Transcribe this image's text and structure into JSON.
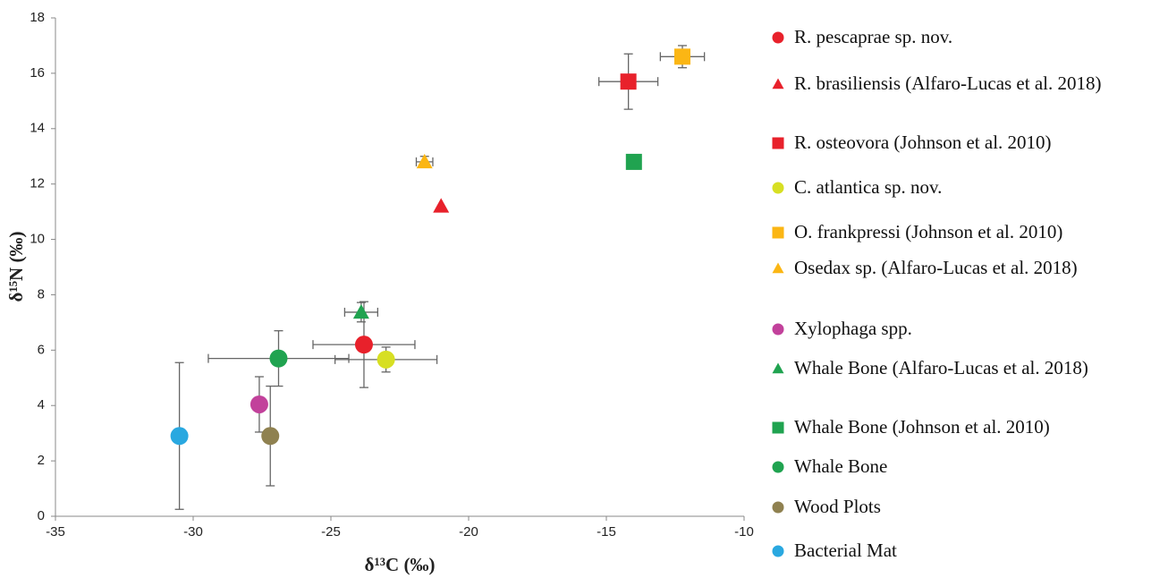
{
  "chart_data": {
    "type": "scatter",
    "x_label": "δ¹³C (‰)",
    "y_label": "δ¹⁵N (‰)",
    "xlim": [
      -35,
      -10
    ],
    "xticks": [
      -35,
      -30,
      -25,
      -20,
      -15,
      -10
    ],
    "ylim": [
      0,
      18
    ],
    "yticks": [
      0,
      2,
      4,
      6,
      8,
      10,
      12,
      14,
      16,
      18
    ],
    "grid": false,
    "legend": "right",
    "series": [
      {
        "name": "R. pescaprae sp. nov.",
        "color": "#e8212b",
        "marker": "circle",
        "x": [
          -23.8
        ],
        "values": [
          6.2
        ],
        "x_errors": [
          1.85
        ],
        "y_errors": [
          1.55
        ]
      },
      {
        "name": "R. brasiliensis (Alfaro-Lucas et al. 2018)",
        "color": "#e8212b",
        "marker": "triangle",
        "x": [
          -21.0
        ],
        "values": [
          11.2
        ]
      },
      {
        "name": "R. osteovora (Johnson et al. 2010)",
        "color": "#e8212b",
        "marker": "square",
        "x": [
          -14.2
        ],
        "values": [
          15.7
        ],
        "x_errors": [
          1.07
        ],
        "y_errors": [
          1.0
        ]
      },
      {
        "name": "C. atlantica sp. nov.",
        "color": "#d7df23",
        "marker": "circle",
        "x": [
          -23.0
        ],
        "values": [
          5.66
        ],
        "x_errors": [
          1.85
        ],
        "y_errors": [
          0.45
        ]
      },
      {
        "name": "O. frankpressi (Johnson et al. 2010)",
        "color": "#fbb614",
        "marker": "square",
        "x": [
          -12.24
        ],
        "values": [
          16.6
        ],
        "x_errors": [
          0.8
        ],
        "y_errors": [
          0.4
        ]
      },
      {
        "name": "Osedax sp. (Alfaro-Lucas et al. 2018)",
        "color": "#fbb614",
        "marker": "triangle",
        "x": [
          -21.6
        ],
        "values": [
          12.8
        ],
        "x_errors": [
          0.3
        ],
        "y_errors": [
          0.2
        ]
      },
      {
        "name": "Xylophaga spp.",
        "color": "#c2419b",
        "marker": "circle",
        "x": [
          -27.6
        ],
        "values": [
          4.04
        ],
        "y_errors": [
          1.0
        ]
      },
      {
        "name": "Whale Bone (Alfaro-Lucas et al. 2018)",
        "color": "#20a350",
        "marker": "triangle",
        "x": [
          -23.9
        ],
        "values": [
          7.37
        ],
        "x_errors": [
          0.6
        ],
        "y_errors": [
          0.35
        ]
      },
      {
        "name": "Whale Bone (Johnson et al. 2010)",
        "color": "#20a350",
        "marker": "square",
        "x": [
          -14.0
        ],
        "values": [
          12.8
        ]
      },
      {
        "name": "Whale Bone",
        "color": "#20a350",
        "marker": "circle",
        "x": [
          -26.9
        ],
        "values": [
          5.7
        ],
        "x_errors": [
          2.55
        ],
        "y_errors": [
          1.0
        ]
      },
      {
        "name": "Wood Plots",
        "color": "#8f8150",
        "marker": "circle",
        "x": [
          -27.2
        ],
        "values": [
          2.9
        ],
        "y_errors": [
          1.8
        ]
      },
      {
        "name": "Bacterial Mat",
        "color": "#29a8e0",
        "marker": "circle",
        "x": [
          -30.5
        ],
        "values": [
          2.9
        ],
        "y_errors": [
          2.65
        ]
      }
    ]
  }
}
